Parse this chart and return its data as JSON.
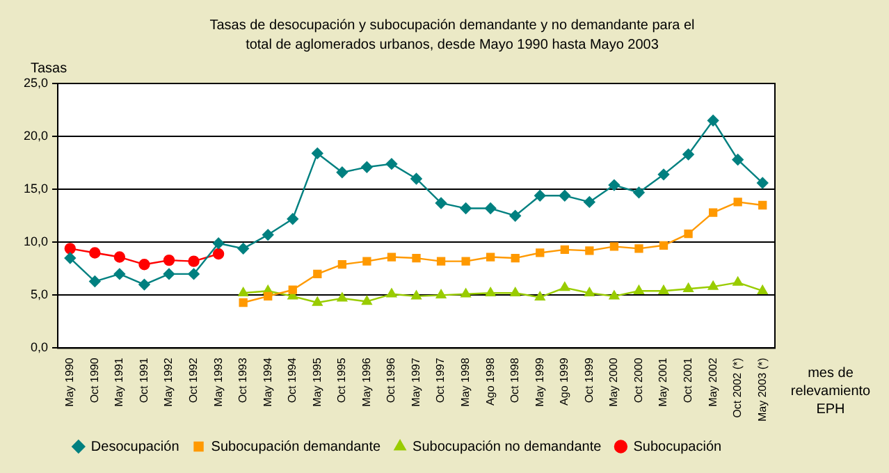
{
  "chart_data": {
    "type": "line",
    "title": "Tasas de desocupación y subocupación demandante y no demandante para el total de aglomerados urbanos, desde Mayo 1990 hasta Mayo 2003",
    "ylabel": "Tasas",
    "xlabel": "mes de relevamiento EPH",
    "categories": [
      "May 1990",
      "Oct 1990",
      "May 1991",
      "Oct 1991",
      "May 1992",
      "Oct 1992",
      "May 1993",
      "Oct 1993",
      "May 1994",
      "Oct 1994",
      "May 1995",
      "Oct 1995",
      "May 1996",
      "Oct 1996",
      "May 1997",
      "Oct 1997",
      "May 1998",
      "Ago 1998",
      "Oct 1998",
      "May 1999",
      "Ago 1999",
      "Oct 1999",
      "May 2000",
      "Oct 2000",
      "May 2001",
      "Oct 2001",
      "May 2002",
      "Oct 2002 (*)",
      "May 2003 (*)"
    ],
    "series": [
      {
        "name": "Desocupación",
        "color": "#008080",
        "marker": "diamond",
        "values": [
          8.5,
          6.3,
          7.0,
          6.0,
          7.0,
          7.0,
          9.9,
          9.4,
          10.7,
          12.2,
          18.4,
          16.6,
          17.1,
          17.4,
          16.0,
          13.7,
          13.2,
          13.2,
          12.5,
          14.4,
          14.4,
          13.8,
          15.4,
          14.7,
          16.4,
          18.3,
          21.5,
          17.8,
          15.6
        ]
      },
      {
        "name": "Subocupación demandante",
        "color": "#ff9900",
        "marker": "square",
        "values": [
          null,
          null,
          null,
          null,
          null,
          null,
          null,
          4.3,
          4.9,
          5.5,
          7.0,
          7.9,
          8.2,
          8.6,
          8.5,
          8.2,
          8.2,
          8.6,
          8.5,
          9.0,
          9.3,
          9.2,
          9.6,
          9.4,
          9.7,
          10.8,
          12.8,
          13.8,
          13.5
        ]
      },
      {
        "name": "Subocupación no demandante",
        "color": "#99cc00",
        "marker": "triangle",
        "values": [
          null,
          null,
          null,
          null,
          null,
          null,
          null,
          5.2,
          5.4,
          4.9,
          4.3,
          4.7,
          4.4,
          5.1,
          4.9,
          5.0,
          5.1,
          5.2,
          5.2,
          4.8,
          5.7,
          5.2,
          4.9,
          5.4,
          5.4,
          5.6,
          5.8,
          6.2,
          5.4
        ]
      },
      {
        "name": "Subocupación",
        "color": "#ff0000",
        "marker": "circle",
        "values": [
          9.4,
          9.0,
          8.6,
          7.9,
          8.3,
          8.2,
          8.9,
          null,
          null,
          null,
          null,
          null,
          null,
          null,
          null,
          null,
          null,
          null,
          null,
          null,
          null,
          null,
          null,
          null,
          null,
          null,
          null,
          null,
          null
        ]
      }
    ],
    "ylim": [
      0,
      25
    ],
    "yticks": [
      {
        "value": 0,
        "label": "0,0"
      },
      {
        "value": 5,
        "label": "5,0"
      },
      {
        "value": 10,
        "label": "10,0"
      },
      {
        "value": 15,
        "label": "15,0"
      },
      {
        "value": 20,
        "label": "20,0"
      },
      {
        "value": 25,
        "label": "25,0"
      }
    ],
    "grid": "y",
    "legend": "bottom"
  }
}
